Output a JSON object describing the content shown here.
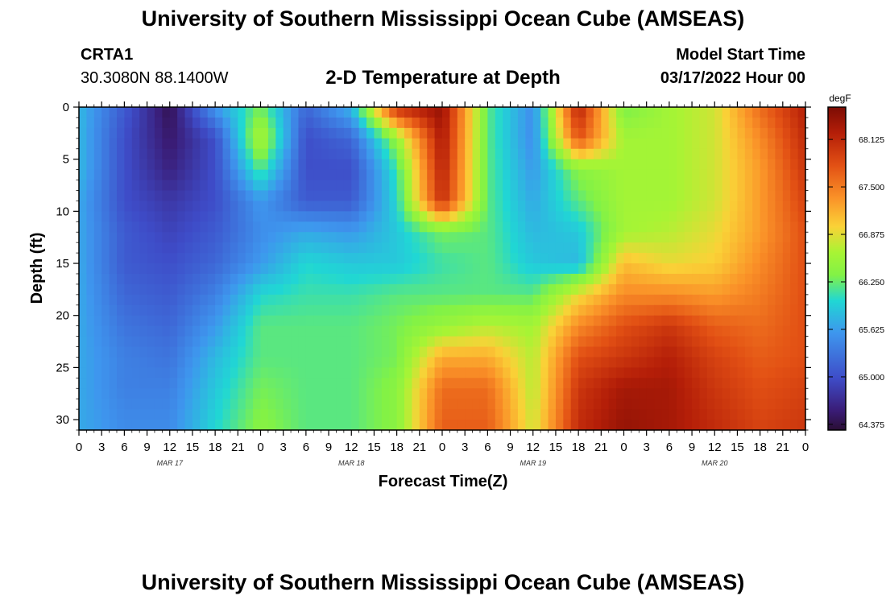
{
  "header": {
    "title": "University of Southern Mississippi Ocean Cube (AMSEAS)",
    "station_id": "CRTA1",
    "station_coords": "30.3080N  88.1400W",
    "plot_title": "2-D Temperature at Depth",
    "model_start_label": "Model Start Time",
    "model_start_value": "03/17/2022 Hour 00"
  },
  "footer": {
    "title": "University of Southern Mississippi Ocean Cube (AMSEAS)"
  },
  "chart_data": {
    "type": "heatmap",
    "title": "2-D Temperature at Depth",
    "xlabel": "Forecast Time(Z)",
    "ylabel": "Depth (ft)",
    "x_range_hours": [
      0,
      96
    ],
    "y_range_ft": [
      0,
      31
    ],
    "x_tick_labels": [
      "0",
      "3",
      "6",
      "9",
      "12",
      "15",
      "18",
      "21",
      "0",
      "3",
      "6",
      "9",
      "12",
      "15",
      "18",
      "21",
      "0",
      "3",
      "6",
      "9",
      "12",
      "15",
      "18",
      "21",
      "0",
      "3",
      "6",
      "9",
      "12",
      "15",
      "18",
      "21",
      "0"
    ],
    "y_ticks": [
      0,
      5,
      10,
      15,
      20,
      25,
      30
    ],
    "y_tick_labels": [
      "0",
      "5",
      "10",
      "15",
      "20",
      "25",
      "30"
    ],
    "day_labels": [
      {
        "hour": 12,
        "text": "MAR 17"
      },
      {
        "hour": 36,
        "text": "MAR 18"
      },
      {
        "hour": 60,
        "text": "MAR 19"
      },
      {
        "hour": 84,
        "text": "MAR 20"
      }
    ],
    "colorbar": {
      "unit": "degF",
      "min": 64.3,
      "max": 68.55,
      "tick_values": [
        64.375,
        65.0,
        65.625,
        66.25,
        66.875,
        67.5,
        68.125
      ],
      "tick_labels": [
        "64.375",
        "65.000",
        "65.625",
        "66.250",
        "66.875",
        "67.500",
        "68.125"
      ]
    },
    "grid_time_hours": [
      0,
      6,
      12,
      18,
      24,
      30,
      36,
      42,
      48,
      54,
      60,
      66,
      72,
      78,
      84,
      90,
      96
    ],
    "grid_depth_ft": [
      0,
      3,
      6,
      9,
      12,
      15,
      18,
      21,
      24,
      27,
      31
    ],
    "temperature_degF": [
      [
        65.8,
        65.1,
        64.4,
        65.6,
        66.3,
        65.2,
        65.8,
        68.1,
        68.4,
        66.2,
        65.5,
        68.2,
        66.3,
        66.6,
        66.8,
        67.6,
        68.2
      ],
      [
        65.8,
        65.0,
        64.5,
        65.0,
        66.7,
        65.0,
        65.2,
        66.5,
        68.3,
        66.2,
        65.5,
        67.8,
        66.6,
        66.6,
        66.8,
        67.4,
        68.1
      ],
      [
        65.8,
        65.0,
        64.6,
        65.0,
        66.2,
        65.0,
        65.0,
        66.1,
        68.2,
        66.2,
        65.6,
        66.4,
        66.6,
        66.6,
        66.8,
        67.3,
        68.0
      ],
      [
        65.7,
        65.0,
        64.8,
        65.0,
        65.6,
        65.1,
        65.1,
        66.0,
        68.1,
        66.2,
        65.7,
        66.2,
        66.6,
        66.6,
        66.8,
        67.3,
        67.9
      ],
      [
        65.7,
        65.1,
        64.9,
        65.1,
        65.5,
        65.7,
        65.6,
        65.9,
        66.3,
        66.2,
        65.8,
        65.9,
        66.6,
        66.7,
        66.9,
        67.3,
        67.8
      ],
      [
        65.7,
        65.1,
        65.0,
        65.2,
        65.6,
        66.0,
        65.9,
        65.9,
        66.1,
        66.2,
        65.9,
        65.8,
        67.1,
        66.9,
        67.0,
        67.4,
        67.8
      ],
      [
        65.7,
        65.2,
        65.1,
        65.4,
        66.0,
        66.1,
        66.1,
        66.2,
        66.2,
        66.2,
        66.2,
        66.9,
        67.4,
        67.4,
        67.3,
        67.5,
        67.8
      ],
      [
        65.7,
        65.3,
        65.2,
        65.6,
        66.2,
        66.2,
        66.2,
        66.3,
        66.5,
        66.7,
        66.6,
        67.4,
        67.8,
        68.0,
        67.7,
        67.6,
        67.8
      ],
      [
        65.7,
        65.4,
        65.3,
        65.8,
        66.2,
        66.2,
        66.2,
        66.3,
        67.2,
        67.2,
        66.7,
        67.8,
        68.0,
        68.2,
        67.9,
        67.7,
        67.8
      ],
      [
        65.7,
        65.4,
        65.4,
        65.9,
        66.3,
        66.2,
        66.2,
        66.4,
        67.6,
        67.6,
        66.7,
        68.0,
        68.3,
        68.3,
        68.0,
        67.8,
        67.9
      ],
      [
        65.7,
        65.5,
        65.5,
        66.0,
        66.4,
        66.2,
        66.2,
        66.4,
        67.7,
        67.7,
        66.8,
        68.1,
        68.4,
        68.3,
        68.1,
        67.9,
        68.0
      ]
    ]
  }
}
